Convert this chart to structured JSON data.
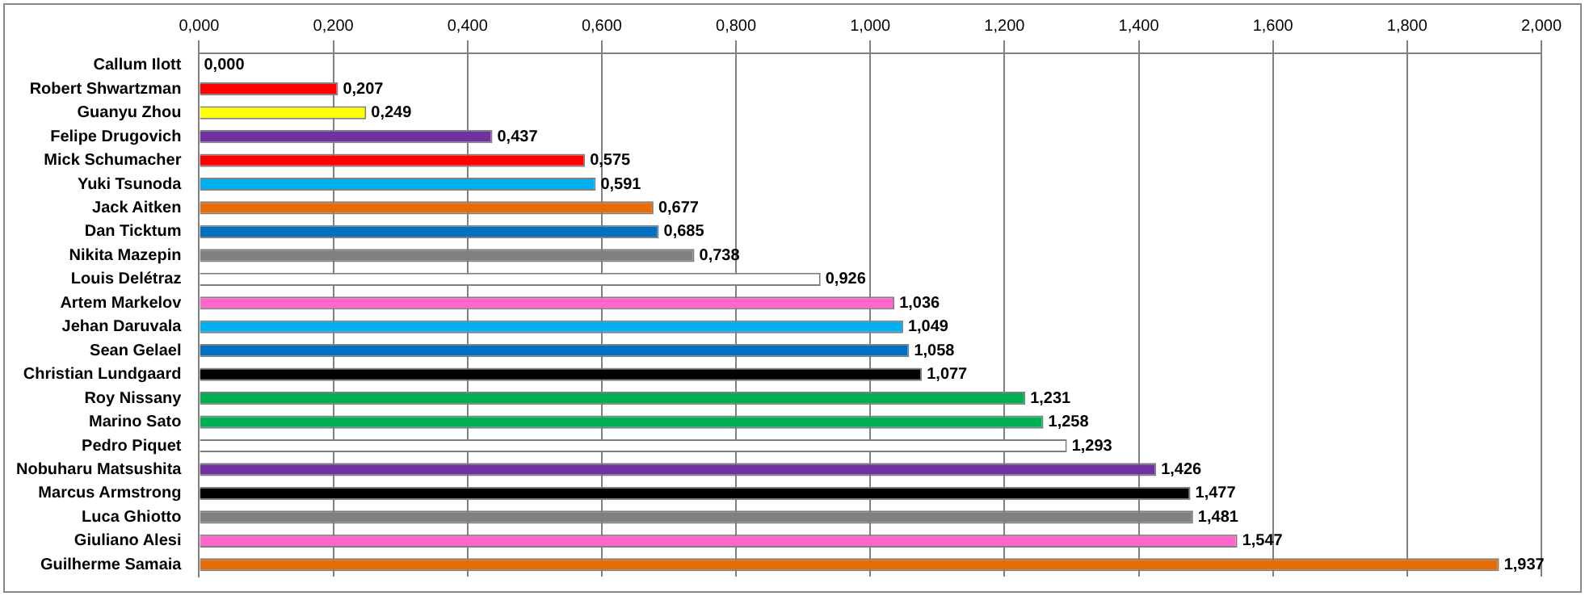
{
  "chart_data": {
    "type": "bar",
    "orientation": "horizontal",
    "categories": [
      "Callum Ilott",
      "Robert Shwartzman",
      "Guanyu Zhou",
      "Felipe Drugovich",
      "Mick Schumacher",
      "Yuki Tsunoda",
      "Jack Aitken",
      "Dan Ticktum",
      "Nikita Mazepin",
      "Louis Delétraz",
      "Artem Markelov",
      "Jehan Daruvala",
      "Sean Gelael",
      "Christian Lundgaard",
      "Roy Nissany",
      "Marino Sato",
      "Pedro Piquet",
      "Nobuharu Matsushita",
      "Marcus Armstrong",
      "Luca Ghiotto",
      "Giuliano Alesi",
      "Guilherme Samaia"
    ],
    "values": [
      0,
      0.207,
      0.249,
      0.437,
      0.575,
      0.591,
      0.677,
      0.685,
      0.738,
      0.926,
      1.036,
      1.049,
      1.058,
      1.077,
      1.231,
      1.258,
      1.293,
      1.426,
      1.477,
      1.481,
      1.547,
      1.937
    ],
    "value_labels": [
      "0,000",
      "0,207",
      "0,249",
      "0,437",
      "0,575",
      "0,591",
      "0,677",
      "0,685",
      "0,738",
      "0,926",
      "1,036",
      "1,049",
      "1,058",
      "1,077",
      "1,231",
      "1,258",
      "1,293",
      "1,426",
      "1,477",
      "1,481",
      "1,547",
      "1,937"
    ],
    "colors": [
      "#e46c0a",
      "#ff0000",
      "#ffff00",
      "#7030a0",
      "#ff0000",
      "#00b0f0",
      "#e46c0a",
      "#0070c0",
      "#808080",
      "#ffffff",
      "#ff66cc",
      "#00b0f0",
      "#0070c0",
      "#000000",
      "#00b050",
      "#00b050",
      "#ffffff",
      "#7030a0",
      "#000000",
      "#808080",
      "#ff66cc",
      "#e46c0a"
    ],
    "xlim": [
      0,
      2
    ],
    "xticks": [
      {
        "value": 0,
        "label": "0,000"
      },
      {
        "value": 0.2,
        "label": "0,200"
      },
      {
        "value": 0.4,
        "label": "0,400"
      },
      {
        "value": 0.6,
        "label": "0,600"
      },
      {
        "value": 0.8,
        "label": "0,800"
      },
      {
        "value": 1,
        "label": "1,000"
      },
      {
        "value": 1.2,
        "label": "1,200"
      },
      {
        "value": 1.4,
        "label": "1,400"
      },
      {
        "value": 1.6,
        "label": "1,600"
      },
      {
        "value": 1.8,
        "label": "1,800"
      },
      {
        "value": 2,
        "label": "2,000"
      }
    ],
    "grid": "x",
    "legend": false
  }
}
